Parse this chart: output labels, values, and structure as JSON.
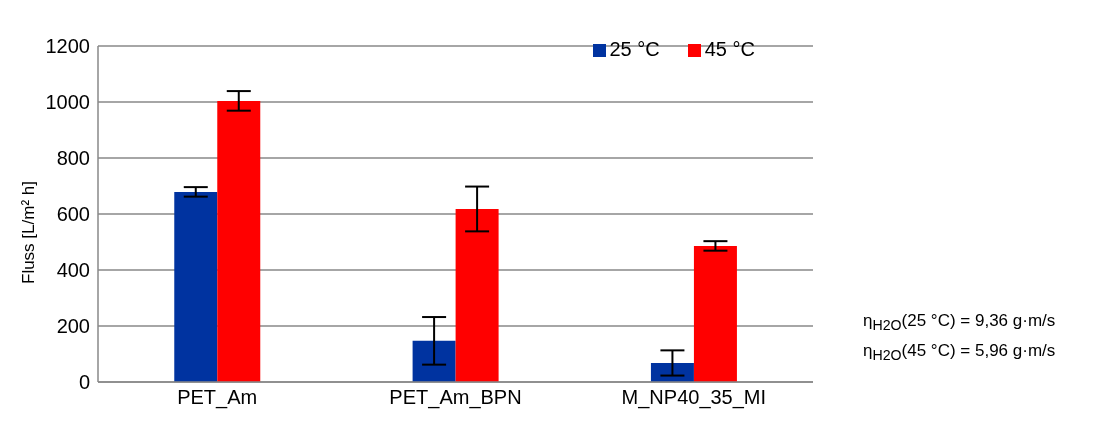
{
  "chart_data": {
    "type": "bar",
    "ylabel": "Fluss [L/m² h]",
    "categories": [
      "PET_Am",
      "PET_Am_BPN",
      "M_NP40_35_MI"
    ],
    "series": [
      {
        "name": "25 °C",
        "color": "#0033a0",
        "values": [
          679,
          147,
          68
        ],
        "errors": [
          17,
          85,
          45
        ]
      },
      {
        "name": "45 °C",
        "color": "#ff0000",
        "values": [
          1004,
          618,
          486
        ],
        "errors": [
          35,
          80,
          17
        ]
      }
    ],
    "ylim": [
      0,
      1200
    ],
    "yticks": [
      0,
      200,
      400,
      600,
      800,
      1000,
      1200
    ],
    "grid": "y",
    "legend": "top right",
    "annotations": [
      "η$_{H2O}$(25 °C) = 9,36 g·m/s",
      "η$_{H2O}$(45 °C) = 5,96 g·m/s"
    ]
  }
}
